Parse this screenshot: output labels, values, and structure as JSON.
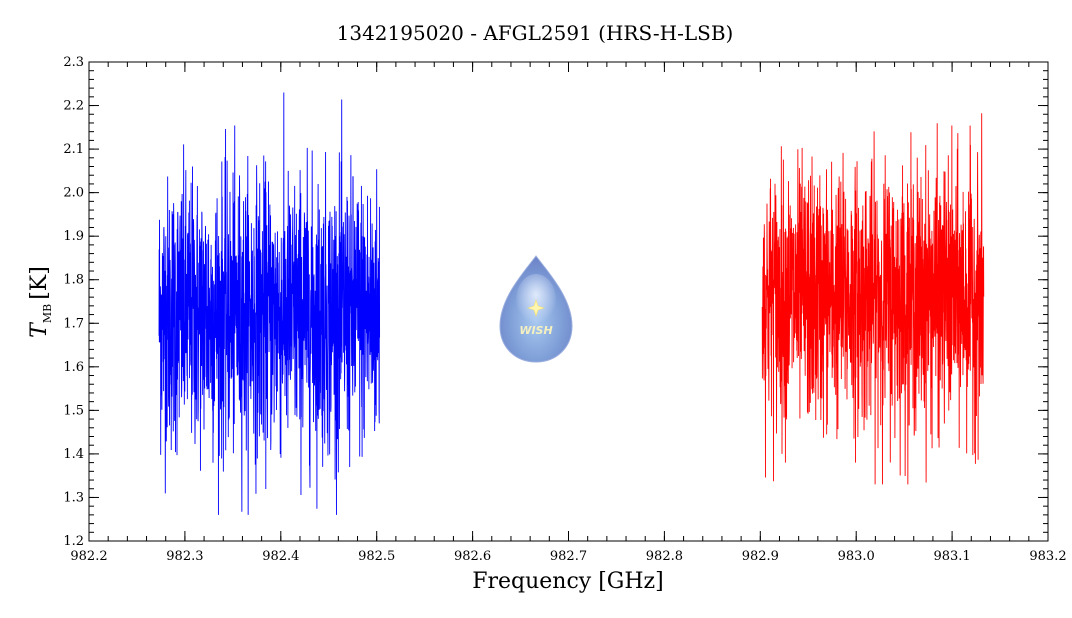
{
  "chart_data": {
    "type": "line",
    "title": "1342195020 - AFGL2591 (HRS-H-LSB)",
    "xlabel": "Frequency [GHz]",
    "ylabel_symbol": "T",
    "ylabel_subscript": "MB",
    "ylabel_unit": "[K]",
    "xlim": [
      982.2,
      983.2
    ],
    "ylim": [
      1.2,
      2.3
    ],
    "xticks": [
      "982.2",
      "982.3",
      "982.4",
      "982.5",
      "982.6",
      "982.7",
      "982.8",
      "982.9",
      "983.0",
      "983.1",
      "983.2"
    ],
    "yticks": [
      "1.2",
      "1.3",
      "1.4",
      "1.5",
      "1.6",
      "1.7",
      "1.8",
      "1.9",
      "2.0",
      "2.1",
      "2.2",
      "2.3"
    ],
    "grid": false,
    "series": [
      {
        "color": "#0000ff",
        "x_range": [
          982.273,
          982.503
        ],
        "mean": 1.72,
        "noise_min": 1.26,
        "noise_max": 2.23
      },
      {
        "color": "#ff0000",
        "x_range": [
          982.902,
          983.133
        ],
        "mean": 1.76,
        "noise_min": 1.33,
        "noise_max": 2.23
      }
    ],
    "logo": {
      "text": "WISH",
      "icon": "water-drop-star-icon"
    }
  }
}
